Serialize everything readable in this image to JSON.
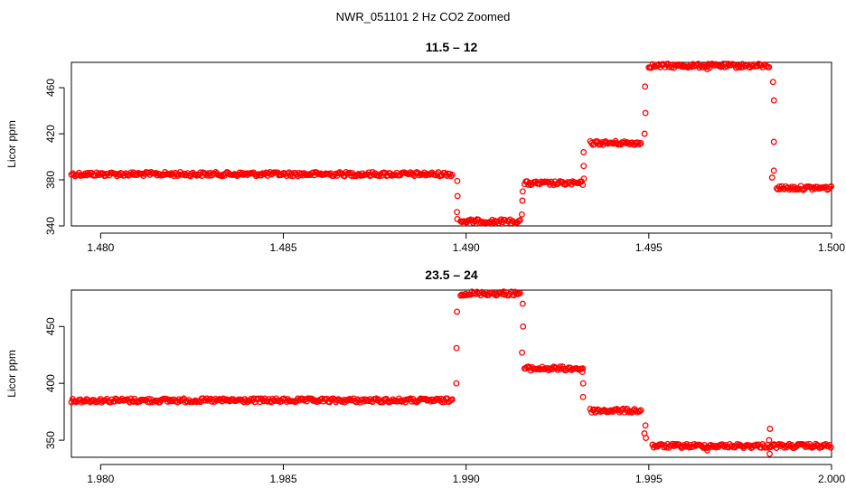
{
  "page": {
    "title": "NWR_051101  2 Hz CO2 Zoomed"
  },
  "chart_data": [
    {
      "type": "scatter",
      "title": "11.5 – 12",
      "xlabel": "",
      "ylabel": "Licor ppm",
      "xlim": [
        1.4792,
        1.5
      ],
      "ylim": [
        340,
        482
      ],
      "xticks": [
        1.48,
        1.485,
        1.49,
        1.495,
        1.5
      ],
      "xtick_labels": [
        "1.480",
        "1.485",
        "1.490",
        "1.495",
        "1.500"
      ],
      "yticks": [
        340,
        380,
        420,
        460
      ],
      "ytick_labels": [
        "340",
        "380",
        "420",
        "460"
      ],
      "grid": false,
      "marker_color": "#ff0000",
      "marker": "open-circle",
      "segments": [
        {
          "x": [
            1.4792,
            1.48965
          ],
          "y": 385
        },
        {
          "x": [
            1.48985,
            1.4915
          ],
          "y": 344
        },
        {
          "x": [
            1.4916,
            1.4932
          ],
          "y": 377
        },
        {
          "x": [
            1.4934,
            1.4948
          ],
          "y": 412
        },
        {
          "x": [
            1.495,
            1.4983
          ],
          "y": 479
        },
        {
          "x": [
            1.4985,
            1.5
          ],
          "y": 373
        }
      ],
      "transitions": [
        {
          "x": 1.48975,
          "y": [
            379,
            366,
            352,
            346
          ]
        },
        {
          "x": 1.49155,
          "y": [
            350,
            362,
            370
          ]
        },
        {
          "x": 1.4932,
          "y": [
            381,
            392,
            404
          ]
        },
        {
          "x": 1.4949,
          "y": [
            420,
            438,
            461
          ]
        },
        {
          "x": 1.4984,
          "y": [
            465,
            449,
            413,
            388,
            382
          ]
        }
      ],
      "outliers": [
        {
          "x": 1.4966,
          "y": 476
        }
      ]
    },
    {
      "type": "scatter",
      "title": "23.5 – 24",
      "xlabel": "",
      "ylabel": "Licor ppm",
      "xlim": [
        1.9792,
        2.0
      ],
      "ylim": [
        335,
        482
      ],
      "xticks": [
        1.98,
        1.985,
        1.99,
        1.995,
        2.0
      ],
      "xtick_labels": [
        "1.980",
        "1.985",
        "1.990",
        "1.995",
        "2.000"
      ],
      "yticks": [
        350,
        400,
        450
      ],
      "ytick_labels": [
        "350",
        "400",
        "450"
      ],
      "grid": false,
      "marker_color": "#ff0000",
      "marker": "open-circle",
      "segments": [
        {
          "x": [
            1.9792,
            1.98965
          ],
          "y": 385
        },
        {
          "x": [
            1.98985,
            1.9915
          ],
          "y": 479
        },
        {
          "x": [
            1.9916,
            1.9932
          ],
          "y": 413
        },
        {
          "x": [
            1.9934,
            1.9948
          ],
          "y": 376
        },
        {
          "x": [
            1.9951,
            2.0
          ],
          "y": 345
        }
      ],
      "transitions": [
        {
          "x": 1.98975,
          "y": [
            400,
            431,
            463
          ]
        },
        {
          "x": 1.99155,
          "y": [
            470,
            450,
            427
          ]
        },
        {
          "x": 1.9932,
          "y": [
            410,
            400,
            388
          ]
        },
        {
          "x": 1.9949,
          "y": [
            363,
            356,
            352
          ]
        },
        {
          "x": 1.9983,
          "y": [
            360,
            350,
            338
          ]
        }
      ],
      "outliers": [
        {
          "x": 1.9966,
          "y": 341
        }
      ]
    }
  ]
}
